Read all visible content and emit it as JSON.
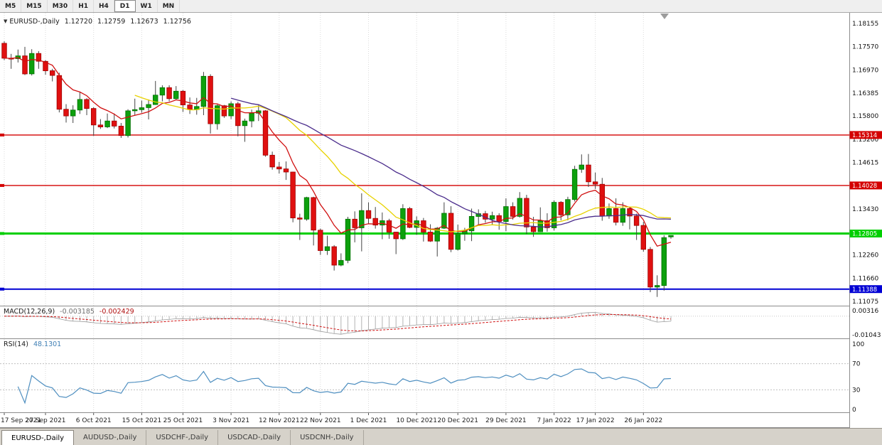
{
  "toolbar": {
    "buttons": [
      "M5",
      "M15",
      "M30",
      "H1",
      "H4",
      "D1",
      "W1",
      "MN"
    ],
    "active": "D1"
  },
  "chart": {
    "header": {
      "icon": "▼",
      "symbol": "EURUSD-,Daily",
      "open": "1.12720",
      "high": "1.12759",
      "low": "1.12673",
      "close": "1.12756"
    },
    "price_axis_labels": [
      "1.18155",
      "1.17570",
      "1.16970",
      "1.16385",
      "1.15800",
      "1.15200",
      "1.14615",
      "1.14030",
      "1.13430",
      "1.12845",
      "1.12260",
      "1.11660",
      "1.11075"
    ],
    "hlines": [
      {
        "price": 1.15314,
        "label": "1.15314",
        "color": "#D40000",
        "width": 1.4
      },
      {
        "price": 1.14028,
        "label": "1.14028",
        "color": "#D40000",
        "width": 1.4
      },
      {
        "price": 1.12805,
        "label": "1.12805",
        "color": "#00CF00",
        "width": 3
      },
      {
        "price": 1.11388,
        "label": "1.11388",
        "color": "#0000D4",
        "width": 2
      }
    ],
    "colors": {
      "bull": "#0DA00D",
      "bull_border": "#007000",
      "bear": "#E01010",
      "bear_border": "#A00000",
      "wick": "#444444",
      "grid": "#DADADA",
      "background": "#FFFFFF",
      "axis_text": "#111111"
    }
  },
  "chart_data": {
    "type": "candlestick",
    "symbol": "EURUSD",
    "period": "Daily",
    "ylim": [
      1.109664,
      1.184266
    ],
    "ohlc": [
      [
        1.1765,
        1.177,
        1.1722,
        1.1727
      ],
      [
        1.1727,
        1.1738,
        1.17,
        1.1726
      ],
      [
        1.1726,
        1.1749,
        1.1716,
        1.1733
      ],
      [
        1.1733,
        1.1756,
        1.1684,
        1.1687
      ],
      [
        1.1687,
        1.175,
        1.1683,
        1.1739
      ],
      [
        1.1739,
        1.1745,
        1.17,
        1.1719
      ],
      [
        1.1719,
        1.1722,
        1.1685,
        1.1695
      ],
      [
        1.1695,
        1.17,
        1.1668,
        1.1683
      ],
      [
        1.1683,
        1.169,
        1.1589,
        1.1597
      ],
      [
        1.1597,
        1.161,
        1.1563,
        1.158
      ],
      [
        1.158,
        1.1607,
        1.1562,
        1.1595
      ],
      [
        1.1595,
        1.164,
        1.1585,
        1.1622
      ],
      [
        1.1622,
        1.1625,
        1.1582,
        1.1599
      ],
      [
        1.1599,
        1.1602,
        1.1529,
        1.1557
      ],
      [
        1.1557,
        1.1572,
        1.1547,
        1.1552
      ],
      [
        1.1552,
        1.1586,
        1.1549,
        1.1567
      ],
      [
        1.1567,
        1.1586,
        1.1548,
        1.1554
      ],
      [
        1.1554,
        1.1562,
        1.1524,
        1.153
      ],
      [
        1.153,
        1.1597,
        1.1525,
        1.1593
      ],
      [
        1.1593,
        1.1624,
        1.1582,
        1.1596
      ],
      [
        1.1596,
        1.1619,
        1.1588,
        1.1601
      ],
      [
        1.1601,
        1.1622,
        1.1571,
        1.1609
      ],
      [
        1.1609,
        1.1669,
        1.1608,
        1.1633
      ],
      [
        1.1633,
        1.1658,
        1.1617,
        1.1652
      ],
      [
        1.1652,
        1.1658,
        1.1617,
        1.1624
      ],
      [
        1.1624,
        1.1656,
        1.1621,
        1.1643
      ],
      [
        1.1643,
        1.1646,
        1.159,
        1.1608
      ],
      [
        1.1608,
        1.1627,
        1.1585,
        1.1596
      ],
      [
        1.1596,
        1.1626,
        1.1583,
        1.1604
      ],
      [
        1.1604,
        1.1692,
        1.1582,
        1.1681
      ],
      [
        1.1681,
        1.1686,
        1.1535,
        1.156
      ],
      [
        1.156,
        1.1609,
        1.1545,
        1.1606
      ],
      [
        1.1606,
        1.1608,
        1.1575,
        1.158
      ],
      [
        1.158,
        1.1617,
        1.1572,
        1.1611
      ],
      [
        1.1611,
        1.1616,
        1.1528,
        1.1555
      ],
      [
        1.1555,
        1.1573,
        1.1514,
        1.1567
      ],
      [
        1.1567,
        1.1596,
        1.1551,
        1.1587
      ],
      [
        1.1587,
        1.1609,
        1.1567,
        1.1593
      ],
      [
        1.1593,
        1.1595,
        1.1476,
        1.148
      ],
      [
        1.148,
        1.1489,
        1.1443,
        1.145
      ],
      [
        1.145,
        1.1463,
        1.1433,
        1.1445
      ],
      [
        1.1445,
        1.1464,
        1.1417,
        1.1437
      ],
      [
        1.1437,
        1.1438,
        1.1309,
        1.132
      ],
      [
        1.132,
        1.1331,
        1.1264,
        1.1317
      ],
      [
        1.1317,
        1.1374,
        1.1313,
        1.1372
      ],
      [
        1.1372,
        1.1374,
        1.125,
        1.1289
      ],
      [
        1.1289,
        1.1293,
        1.1226,
        1.1237
      ],
      [
        1.1237,
        1.1275,
        1.1226,
        1.1247
      ],
      [
        1.1247,
        1.1251,
        1.1186,
        1.12
      ],
      [
        1.12,
        1.123,
        1.1197,
        1.1212
      ],
      [
        1.1212,
        1.1323,
        1.1205,
        1.1317
      ],
      [
        1.1317,
        1.1337,
        1.1258,
        1.1295
      ],
      [
        1.1295,
        1.1383,
        1.1235,
        1.1339
      ],
      [
        1.1339,
        1.136,
        1.1305,
        1.1319
      ],
      [
        1.1319,
        1.1348,
        1.1293,
        1.1302
      ],
      [
        1.1302,
        1.1334,
        1.1266,
        1.1313
      ],
      [
        1.1313,
        1.1318,
        1.1267,
        1.1284
      ],
      [
        1.1284,
        1.1285,
        1.1228,
        1.1267
      ],
      [
        1.1267,
        1.1355,
        1.1264,
        1.1344
      ],
      [
        1.1344,
        1.1348,
        1.1294,
        1.1296
      ],
      [
        1.1296,
        1.1324,
        1.1277,
        1.1313
      ],
      [
        1.1313,
        1.132,
        1.126,
        1.1284
      ],
      [
        1.1284,
        1.1304,
        1.1259,
        1.1261
      ],
      [
        1.1261,
        1.1297,
        1.1222,
        1.1294
      ],
      [
        1.1294,
        1.136,
        1.1292,
        1.1332
      ],
      [
        1.1332,
        1.135,
        1.1233,
        1.124
      ],
      [
        1.124,
        1.1303,
        1.1237,
        1.128
      ],
      [
        1.128,
        1.1295,
        1.1262,
        1.1287
      ],
      [
        1.1287,
        1.1344,
        1.1261,
        1.1324
      ],
      [
        1.1324,
        1.1342,
        1.1303,
        1.1331
      ],
      [
        1.1331,
        1.1338,
        1.1308,
        1.1317
      ],
      [
        1.1317,
        1.1336,
        1.1302,
        1.1326
      ],
      [
        1.1326,
        1.1332,
        1.129,
        1.1311
      ],
      [
        1.1311,
        1.137,
        1.1286,
        1.1349
      ],
      [
        1.1349,
        1.136,
        1.1316,
        1.1324
      ],
      [
        1.1324,
        1.1386,
        1.1321,
        1.137
      ],
      [
        1.137,
        1.1379,
        1.1279,
        1.1297
      ],
      [
        1.1297,
        1.1323,
        1.1272,
        1.1285
      ],
      [
        1.1285,
        1.1347,
        1.1284,
        1.1313
      ],
      [
        1.1313,
        1.1332,
        1.1285,
        1.1295
      ],
      [
        1.1295,
        1.1365,
        1.1288,
        1.136
      ],
      [
        1.136,
        1.1363,
        1.1314,
        1.1328
      ],
      [
        1.1328,
        1.1374,
        1.1314,
        1.1367
      ],
      [
        1.1367,
        1.1453,
        1.1362,
        1.1444
      ],
      [
        1.1444,
        1.1482,
        1.1435,
        1.1455
      ],
      [
        1.1455,
        1.1483,
        1.1399,
        1.1412
      ],
      [
        1.1412,
        1.1436,
        1.1394,
        1.1406
      ],
      [
        1.1406,
        1.1422,
        1.1313,
        1.1325
      ],
      [
        1.1325,
        1.1357,
        1.1318,
        1.1344
      ],
      [
        1.1344,
        1.137,
        1.1301,
        1.1309
      ],
      [
        1.1309,
        1.136,
        1.13,
        1.1344
      ],
      [
        1.1344,
        1.1349,
        1.1291,
        1.1325
      ],
      [
        1.1325,
        1.1331,
        1.1264,
        1.1301
      ],
      [
        1.1301,
        1.131,
        1.1234,
        1.124
      ],
      [
        1.124,
        1.1246,
        1.1131,
        1.1144
      ],
      [
        1.1144,
        1.1174,
        1.1119,
        1.1148
      ],
      [
        1.1148,
        1.1276,
        1.1135,
        1.127
      ],
      [
        1.1272,
        1.12759,
        1.12673,
        1.12756
      ]
    ],
    "date_ticks": [
      {
        "label": "17 Sep 2021",
        "index": 0
      },
      {
        "label": "27 Sep 2021",
        "index": 6
      },
      {
        "label": "6 Oct 2021",
        "index": 13
      },
      {
        "label": "15 Oct 2021",
        "index": 20
      },
      {
        "label": "25 Oct 2021",
        "index": 26
      },
      {
        "label": "3 Nov 2021",
        "index": 33
      },
      {
        "label": "12 Nov 2021",
        "index": 40
      },
      {
        "label": "22 Nov 2021",
        "index": 46
      },
      {
        "label": "1 Dec 2021",
        "index": 53
      },
      {
        "label": "10 Dec 2021",
        "index": 60
      },
      {
        "label": "20 Dec 2021",
        "index": 66
      },
      {
        "label": "29 Dec 2021",
        "index": 73
      },
      {
        "label": "7 Jan 2022",
        "index": 80
      },
      {
        "label": "17 Jan 2022",
        "index": 86
      },
      {
        "label": "26 Jan 2022",
        "index": 93
      }
    ],
    "moving_averages": [
      {
        "name": "ma-fast",
        "type": "ema",
        "period": 8,
        "color": "#D01010"
      },
      {
        "name": "ma-mid",
        "type": "sma",
        "period": 20,
        "color": "#E8D200"
      },
      {
        "name": "ma-slow",
        "type": "sma",
        "period": 34,
        "color": "#4B2D8C"
      }
    ]
  },
  "indicators": {
    "macd": {
      "name": "MACD(12,26,9)",
      "main_value": "-0.003185",
      "signal_value": "-0.002429",
      "fast": 12,
      "slow": 26,
      "signal": 9,
      "ylim": [
        -0.0125,
        0.0055
      ],
      "histogram_color": "#B4B4B4",
      "signal_color": "#D01010",
      "axis_labels": [
        {
          "text": "0.00316",
          "value": 0.00316
        },
        {
          "text": "-0.01043",
          "value": -0.01043
        }
      ]
    },
    "rsi": {
      "name": "RSI(14)",
      "value": "48.1301",
      "period": 14,
      "line_color": "#4F8FC0",
      "levels": [
        70,
        30
      ],
      "axis_labels": [
        {
          "text": "100",
          "value": 100
        },
        {
          "text": "70",
          "value": 70
        },
        {
          "text": "30",
          "value": 30
        },
        {
          "text": "0",
          "value": 0
        }
      ]
    }
  },
  "tabs": [
    {
      "label": "EURUSD-,Daily",
      "active": true
    },
    {
      "label": "AUDUSD-,Daily",
      "active": false
    },
    {
      "label": "USDCHF-,Daily",
      "active": false
    },
    {
      "label": "USDCAD-,Daily",
      "active": false
    },
    {
      "label": "USDCNH-,Daily",
      "active": false
    }
  ]
}
